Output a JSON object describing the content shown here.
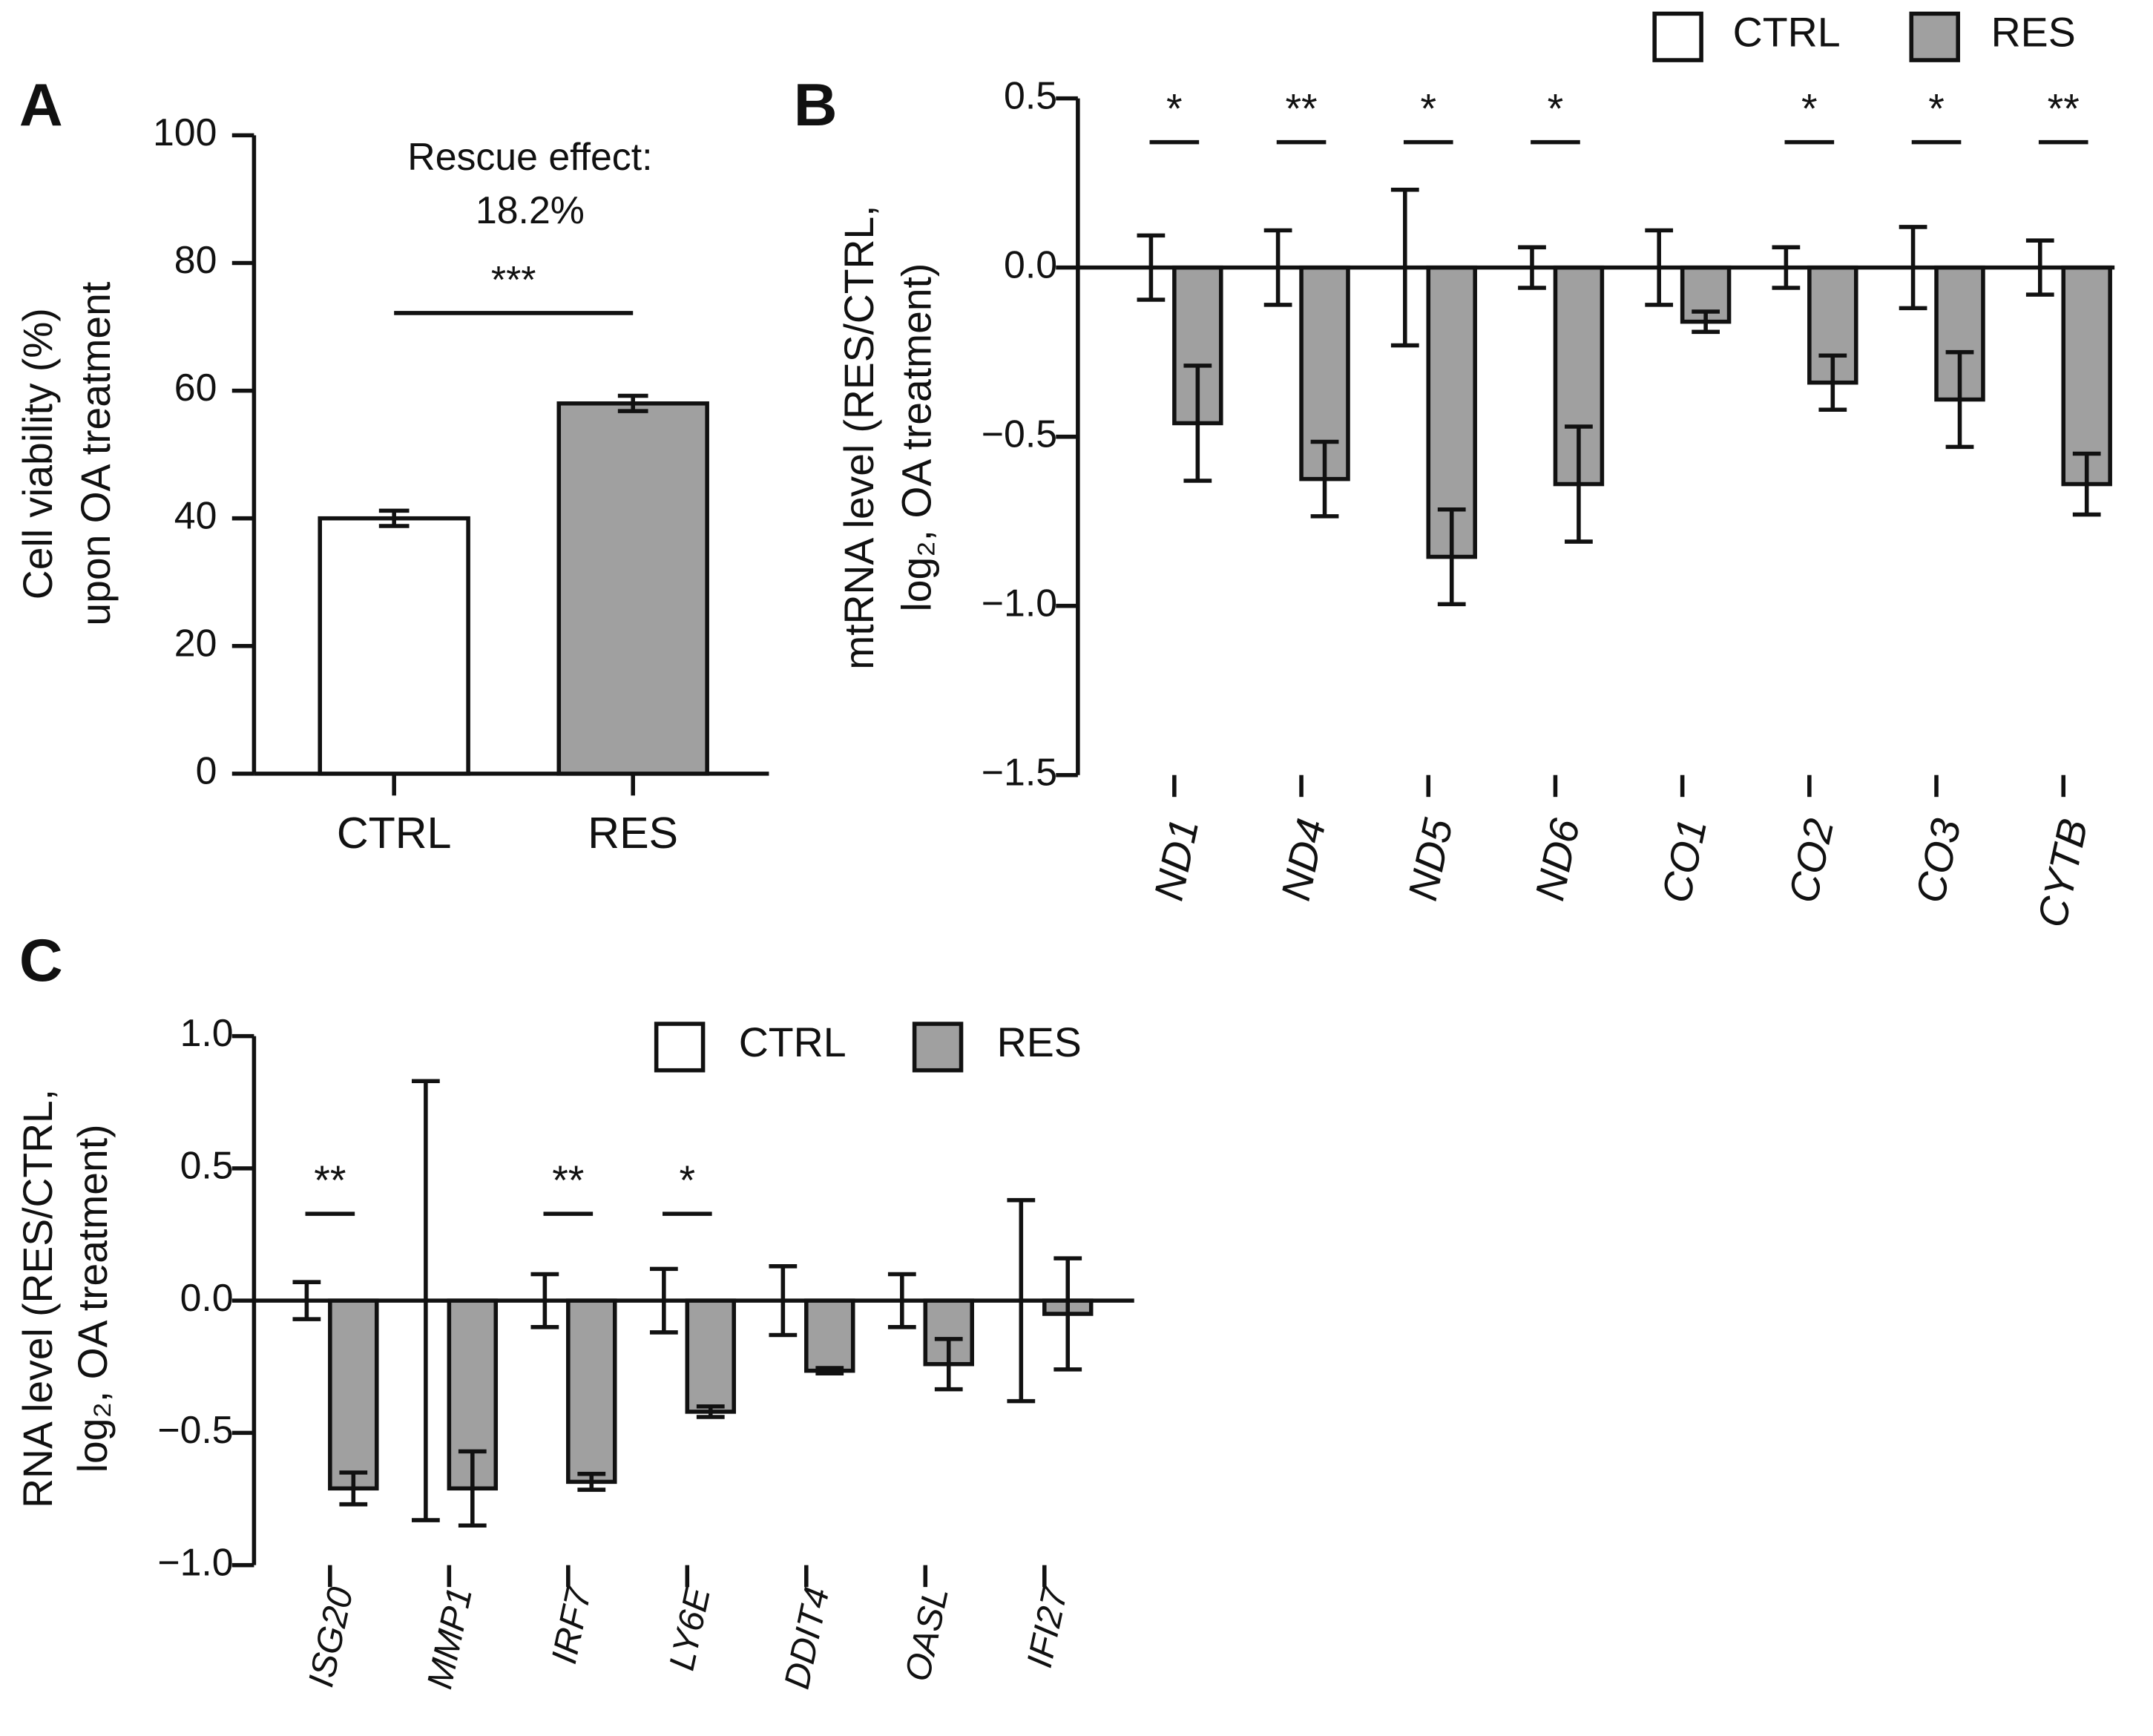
{
  "chart_data": [
    {
      "type": "bar",
      "panel": "A",
      "ylabel": [
        "Cell viability (%)",
        "upon OA treatment"
      ],
      "categories": [
        "CTRL",
        "RES"
      ],
      "values": [
        40,
        58
      ],
      "errors": [
        1.2,
        1.2
      ],
      "colors": [
        "#ffffff",
        "#a0a0a0"
      ],
      "annotation": [
        "Rescue effect:",
        "18.2%"
      ],
      "significance": "***",
      "ylim": [
        0,
        100
      ],
      "yticks": [
        0,
        20,
        40,
        60,
        80,
        100
      ]
    },
    {
      "type": "bar",
      "panel": "B",
      "ylabel": [
        "mtRNA level (RES/CTRL,",
        "log₂, OA treatment)"
      ],
      "categories": [
        "ND1",
        "ND4",
        "ND5",
        "ND6",
        "CO1",
        "CO2",
        "CO3",
        "CYTB"
      ],
      "series": [
        {
          "name": "CTRL",
          "color": "#ffffff",
          "values": [
            0,
            0,
            0,
            0,
            0,
            0,
            0,
            0
          ],
          "errors": [
            0.095,
            0.11,
            0.23,
            0.06,
            0.11,
            0.06,
            0.12,
            0.08
          ]
        },
        {
          "name": "RES",
          "color": "#a0a0a0",
          "values": [
            -0.46,
            -0.625,
            -0.855,
            -0.64,
            -0.16,
            -0.34,
            -0.39,
            -0.64
          ],
          "errors": [
            0.17,
            0.11,
            0.14,
            0.17,
            0.03,
            0.08,
            0.14,
            0.09
          ]
        }
      ],
      "significance": [
        "*",
        "**",
        "*",
        "*",
        null,
        "*",
        "*",
        "**"
      ],
      "ylim": [
        -1.5,
        0.5
      ],
      "yticks": [
        {
          "value": -1.5,
          "label": "−1.5"
        },
        {
          "value": -1,
          "label": "−1.0"
        },
        {
          "value": -0.5,
          "label": "−0.5"
        },
        {
          "value": 0,
          "label": "0.0"
        },
        0.5
      ]
    },
    {
      "type": "bar",
      "panel": "C",
      "ylabel": [
        "RNA level (RES/CTRL,",
        "log₂, OA treatment)"
      ],
      "categories": [
        "ISG20",
        "MMP1",
        "IRF7",
        "LY6E",
        "DDIT4",
        "OASL",
        "IFI27"
      ],
      "series": [
        {
          "name": "CTRL",
          "color": "#ffffff",
          "values": [
            0,
            0,
            0,
            0,
            0,
            0,
            0
          ],
          "errors": [
            0.07,
            0.83,
            0.1,
            0.12,
            0.13,
            0.1,
            0.38
          ]
        },
        {
          "name": "RES",
          "color": "#a0a0a0",
          "values": [
            -0.71,
            -0.71,
            -0.685,
            -0.42,
            -0.265,
            -0.24,
            -0.05
          ],
          "errors": [
            0.06,
            0.14,
            0.03,
            0.02,
            0.01,
            0.095,
            0.21
          ]
        }
      ],
      "significance": [
        "**",
        null,
        "**",
        "*",
        null,
        null,
        null
      ],
      "ylim": [
        -1,
        1
      ],
      "yticks": [
        {
          "value": -1,
          "label": "−1.0"
        },
        {
          "value": -0.5,
          "label": "−0.5"
        },
        {
          "value": 0,
          "label": "0.0"
        },
        0.5,
        {
          "value": 1,
          "label": "1.0"
        }
      ]
    }
  ]
}
